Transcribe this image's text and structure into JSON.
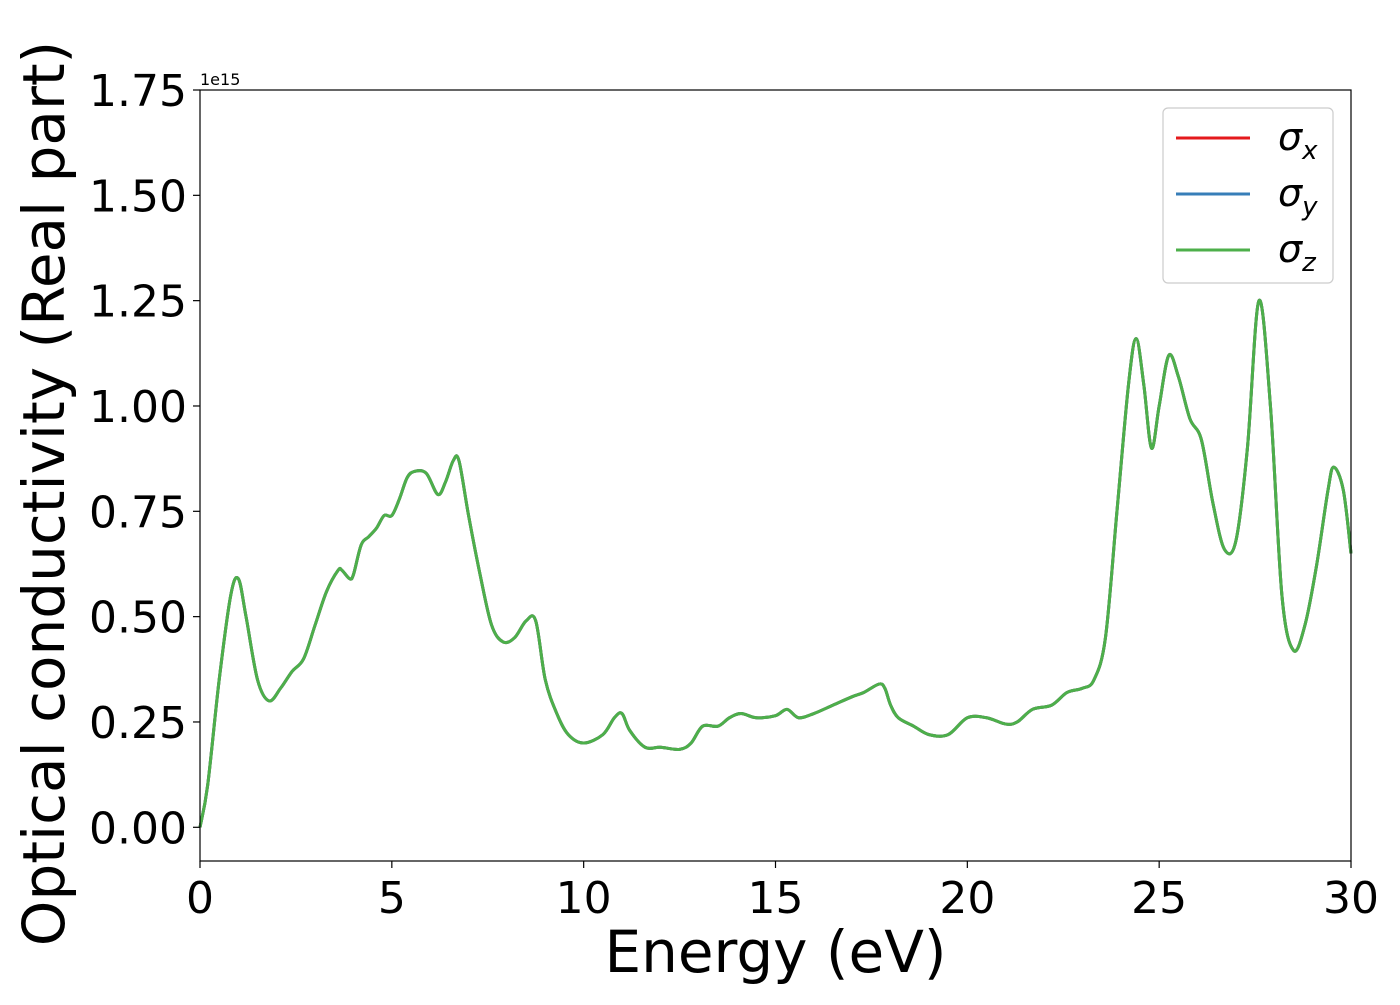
{
  "chart_data": {
    "type": "line",
    "xlabel": "Energy (eV)",
    "ylabel": "Optical conductivity (Real part)",
    "y_offset_label": "1e15",
    "xlim": [
      0,
      30
    ],
    "ylim": [
      -0.08,
      1.75
    ],
    "x_ticks": [
      0,
      5,
      10,
      15,
      20,
      25,
      30
    ],
    "x_tick_labels": [
      "0",
      "5",
      "10",
      "15",
      "20",
      "25",
      "30"
    ],
    "y_ticks": [
      0,
      0.25,
      0.5,
      0.75,
      1.0,
      1.25,
      1.5,
      1.75
    ],
    "y_tick_labels": [
      "0.00",
      "0.25",
      "0.50",
      "0.75",
      "1.00",
      "1.25",
      "1.50",
      "1.75"
    ],
    "grid": false,
    "legend_position": "top-right",
    "x": [
      0,
      0.2,
      0.5,
      0.8,
      1.0,
      1.2,
      1.5,
      1.8,
      2.1,
      2.4,
      2.7,
      3.0,
      3.3,
      3.6,
      3.7,
      3.9,
      4.0,
      4.2,
      4.4,
      4.6,
      4.8,
      5.0,
      5.2,
      5.4,
      5.6,
      5.9,
      6.2,
      6.4,
      6.6,
      6.75,
      7.0,
      7.3,
      7.6,
      7.9,
      8.2,
      8.5,
      8.75,
      9.0,
      9.3,
      9.6,
      10.0,
      10.5,
      10.8,
      11.0,
      11.2,
      11.6,
      12.0,
      12.5,
      12.8,
      13.1,
      13.5,
      13.8,
      14.1,
      14.5,
      15.0,
      15.3,
      15.6,
      16.0,
      16.5,
      17.0,
      17.3,
      17.7,
      17.85,
      18.0,
      18.2,
      18.6,
      19.0,
      19.5,
      20.0,
      20.5,
      21.0,
      21.3,
      21.7,
      22.2,
      22.6,
      23.0,
      23.3,
      23.6,
      23.9,
      24.2,
      24.4,
      24.6,
      24.8,
      25.0,
      25.25,
      25.5,
      25.8,
      26.1,
      26.4,
      26.7,
      27.0,
      27.3,
      27.6,
      27.9,
      28.2,
      28.5,
      28.8,
      29.1,
      29.4,
      29.55,
      29.8,
      30.0
    ],
    "series": [
      {
        "name": "σx",
        "label_base": "σ",
        "label_sub": "x",
        "color": "#e41a1c"
      },
      {
        "name": "σy",
        "label_base": "σ",
        "label_sub": "y",
        "color": "#377eb8"
      },
      {
        "name": "σz",
        "label_base": "σ",
        "label_sub": "z",
        "color": "#4daf4a"
      }
    ],
    "values": [
      0.0,
      0.1,
      0.35,
      0.55,
      0.59,
      0.5,
      0.35,
      0.3,
      0.33,
      0.37,
      0.4,
      0.48,
      0.56,
      0.61,
      0.61,
      0.59,
      0.6,
      0.67,
      0.69,
      0.71,
      0.74,
      0.74,
      0.78,
      0.83,
      0.845,
      0.84,
      0.79,
      0.82,
      0.87,
      0.87,
      0.74,
      0.6,
      0.48,
      0.44,
      0.45,
      0.49,
      0.49,
      0.35,
      0.27,
      0.22,
      0.2,
      0.22,
      0.26,
      0.27,
      0.23,
      0.19,
      0.19,
      0.185,
      0.2,
      0.24,
      0.24,
      0.26,
      0.27,
      0.26,
      0.265,
      0.28,
      0.26,
      0.27,
      0.29,
      0.31,
      0.32,
      0.34,
      0.33,
      0.29,
      0.26,
      0.24,
      0.22,
      0.22,
      0.26,
      0.26,
      0.245,
      0.25,
      0.28,
      0.29,
      0.32,
      0.33,
      0.35,
      0.45,
      0.75,
      1.05,
      1.16,
      1.05,
      0.9,
      1.0,
      1.12,
      1.07,
      0.97,
      0.92,
      0.77,
      0.66,
      0.68,
      0.9,
      1.25,
      1.0,
      0.55,
      0.42,
      0.48,
      0.62,
      0.8,
      0.855,
      0.8,
      0.65
    ]
  }
}
